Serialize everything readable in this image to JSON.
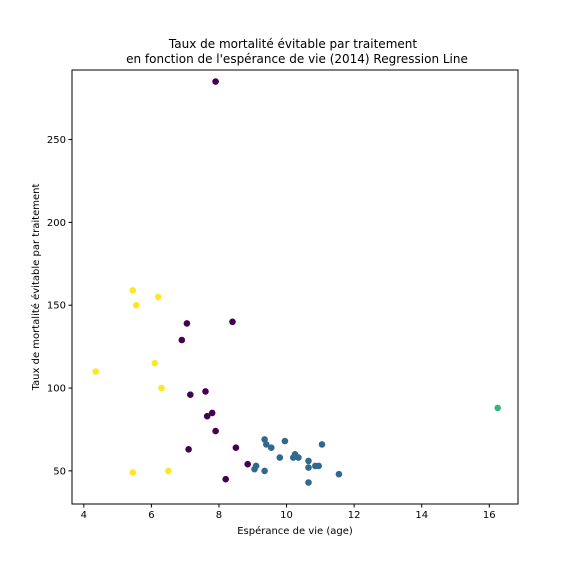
{
  "chart_data": {
    "type": "scatter",
    "title_lines": [
      "Taux de mortalité évitable par traitement",
      "en fonction de l'espérance de vie (2014) Regression Line"
    ],
    "xlabel": "Espérance de vie (age)",
    "ylabel": "Taux de mortalité évitable par traitement",
    "xlim": [
      3.65,
      16.85
    ],
    "ylim": [
      30,
      292
    ],
    "xticks": [
      4,
      6,
      8,
      10,
      12,
      14,
      16
    ],
    "yticks": [
      50,
      100,
      150,
      200,
      250
    ],
    "grid": false,
    "legend": "none",
    "groups": [
      {
        "color": "#440154",
        "points": [
          [
            7.9,
            285
          ],
          [
            7.05,
            139
          ],
          [
            8.4,
            140
          ],
          [
            6.9,
            129
          ],
          [
            7.6,
            98
          ],
          [
            7.15,
            96
          ],
          [
            7.8,
            85
          ],
          [
            7.65,
            83
          ],
          [
            7.9,
            74
          ],
          [
            8.5,
            64
          ],
          [
            7.1,
            63
          ],
          [
            8.85,
            54
          ],
          [
            8.2,
            45
          ]
        ]
      },
      {
        "color": "#31688e",
        "points": [
          [
            9.35,
            69
          ],
          [
            9.4,
            66
          ],
          [
            9.55,
            64
          ],
          [
            9.95,
            68
          ],
          [
            11.05,
            66
          ],
          [
            10.25,
            60
          ],
          [
            10.2,
            58
          ],
          [
            10.35,
            58
          ],
          [
            9.8,
            58
          ],
          [
            10.65,
            56
          ],
          [
            10.65,
            52
          ],
          [
            10.85,
            53
          ],
          [
            10.95,
            53
          ],
          [
            9.1,
            53
          ],
          [
            9.05,
            51
          ],
          [
            9.35,
            50
          ],
          [
            11.55,
            48
          ],
          [
            10.65,
            43
          ]
        ]
      },
      {
        "color": "#35b779",
        "points": [
          [
            16.25,
            88
          ]
        ]
      },
      {
        "color": "#fde725",
        "points": [
          [
            5.45,
            159
          ],
          [
            6.2,
            155
          ],
          [
            5.55,
            150
          ],
          [
            6.1,
            115
          ],
          [
            4.35,
            110
          ],
          [
            6.3,
            100
          ],
          [
            6.5,
            50
          ],
          [
            5.45,
            49
          ]
        ]
      }
    ]
  }
}
